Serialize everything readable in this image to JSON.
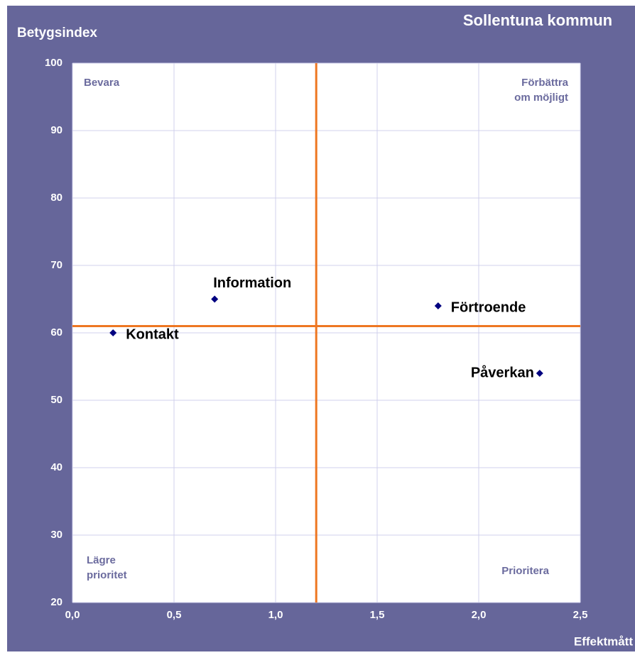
{
  "chart_data": {
    "type": "scatter",
    "title": "Sollentuna kommun",
    "ylabel": "Betygsindex",
    "xlabel": "Effektmått",
    "x": [
      0.2,
      0.7,
      1.8,
      2.3
    ],
    "values": [
      60,
      65,
      64,
      54
    ],
    "point_labels": [
      "Kontakt",
      "Information",
      "Förtroende",
      "Påverkan"
    ],
    "color": "#000080",
    "xlim": [
      0,
      2.5
    ],
    "ylim": [
      20,
      100
    ],
    "xticks": [
      {
        "value": 0,
        "label": "0,0"
      },
      {
        "value": 0.5,
        "label": "0,5"
      },
      {
        "value": 1,
        "label": "1,0"
      },
      {
        "value": 1.5,
        "label": "1,5"
      },
      {
        "value": 2,
        "label": "2,0"
      },
      {
        "value": 2.5,
        "label": "2,5"
      }
    ],
    "yticks": [
      20,
      30,
      40,
      50,
      60,
      70,
      80,
      90,
      100
    ],
    "grid": true,
    "reference_lines": {
      "x": 1.2,
      "y": 61,
      "color": "#ee7722"
    },
    "quadrants": {
      "top_left": [
        "Bevara"
      ],
      "top_right": [
        "Förbättra",
        "om möjligt"
      ],
      "bottom_left": [
        "Lägre",
        "prioritet"
      ],
      "bottom_right": [
        "Prioritera"
      ]
    }
  }
}
